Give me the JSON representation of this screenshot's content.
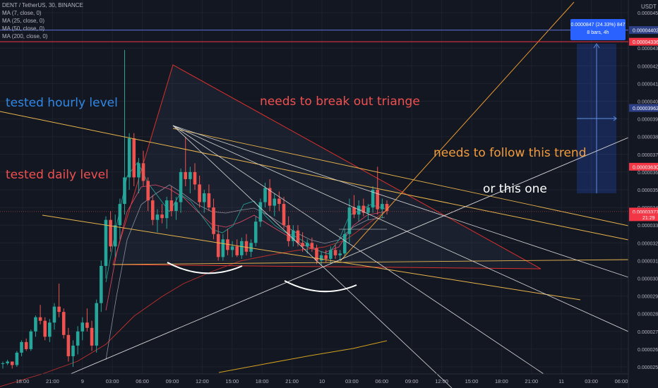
{
  "header": {
    "symbol_line": "DENT / TetherUS, 30, BINANCE",
    "ma_lines": [
      "MA (7, close, 0)",
      "MA (25, close, 0)",
      "MA (50, close, 0)",
      "MA (200, close, 0)"
    ]
  },
  "annotations": {
    "hourly": "tested hourly level",
    "daily": "tested daily level",
    "triangle": "needs to break out triange",
    "trend": "needs to follow this trend",
    "or_this": "or this one"
  },
  "measure": {
    "line1": "0.0000847 (24.33%) 847",
    "line2": "8 bars, 4h"
  },
  "colors": {
    "background": "#131722",
    "up": "#26a69a",
    "down": "#ef5350",
    "hourly_text": "#2f88e8",
    "daily_text": "#f05050",
    "trend_text": "#f39c3c",
    "white_text": "#ffffff",
    "axis_text": "#b2b5be",
    "red_level": "#f23645",
    "blue_level": "#5b6fd6"
  },
  "chart_data": {
    "type": "candlestick",
    "currency": "USDT",
    "ylim": [
      2.45e-05,
      4.5e-05
    ],
    "y_ticks": [
      "0.00004500",
      "0.00004400",
      "0.00004300",
      "0.00004200",
      "0.00004100",
      "0.00004000",
      "0.00003900",
      "0.00003800",
      "0.00003700",
      "0.00003600",
      "0.00003500",
      "0.00003400",
      "0.00003300",
      "0.00003200",
      "0.00003100",
      "0.00003000",
      "0.00002900",
      "0.00002800",
      "0.00002700",
      "0.00002600",
      "0.00002500"
    ],
    "x_ticks": [
      "18:00",
      "21:00",
      "9",
      "03:00",
      "06:00",
      "09:00",
      "12:00",
      "15:00",
      "18:00",
      "21:00",
      "10",
      "03:00",
      "06:00",
      "09:00",
      "12:00",
      "15:00",
      "18:00",
      "21:00",
      "11",
      "03:00",
      "06:00"
    ],
    "price_labels": [
      {
        "text": "0.00004500",
        "value": 4.5e-05,
        "style": "plain"
      },
      {
        "text": "0.00004402",
        "value": 4.402e-05,
        "style": "blue"
      },
      {
        "text": "0.00004336",
        "value": 4.336e-05,
        "style": "red"
      },
      {
        "text": "0.00003962",
        "value": 3.962e-05,
        "style": "blue"
      },
      {
        "text": "0.00003630",
        "value": 3.63e-05,
        "style": "red"
      },
      {
        "text": "0.00003377",
        "value": 3.377e-05,
        "style": "red"
      },
      {
        "text": "21:29",
        "value": 3.345e-05,
        "style": "red"
      }
    ],
    "horizontal_levels": [
      {
        "value": 4.336e-05,
        "color": "#f23645"
      },
      {
        "value": 4.402e-05,
        "color": "#5b6fd6"
      }
    ],
    "candles": [
      [
        2.52e-05,
        2.53e-05,
        2.49e-05,
        2.52e-05
      ],
      [
        2.52e-05,
        2.54e-05,
        2.51e-05,
        2.53e-05
      ],
      [
        2.53e-05,
        2.53e-05,
        2.49e-05,
        2.51e-05
      ],
      [
        2.51e-05,
        2.59e-05,
        2.5e-05,
        2.58e-05
      ],
      [
        2.58e-05,
        2.65e-05,
        2.56e-05,
        2.64e-05
      ],
      [
        2.64e-05,
        2.66e-05,
        2.59e-05,
        2.6e-05
      ],
      [
        2.6e-05,
        2.71e-05,
        2.59e-05,
        2.7e-05
      ],
      [
        2.7e-05,
        2.79e-05,
        2.67e-05,
        2.78e-05
      ],
      [
        2.78e-05,
        2.85e-05,
        2.74e-05,
        2.76e-05
      ],
      [
        2.76e-05,
        2.78e-05,
        2.65e-05,
        2.67e-05
      ],
      [
        2.67e-05,
        2.77e-05,
        2.64e-05,
        2.75e-05
      ],
      [
        2.75e-05,
        2.86e-05,
        2.71e-05,
        2.84e-05
      ],
      [
        2.84e-05,
        2.97e-05,
        2.78e-05,
        2.81e-05
      ],
      [
        2.81e-05,
        2.83e-05,
        2.66e-05,
        2.68e-05
      ],
      [
        2.68e-05,
        2.72e-05,
        2.53e-05,
        2.56e-05
      ],
      [
        2.56e-05,
        2.65e-05,
        2.5e-05,
        2.62e-05
      ],
      [
        2.62e-05,
        2.73e-05,
        2.57e-05,
        2.7e-05
      ],
      [
        2.7e-05,
        2.78e-05,
        2.65e-05,
        2.75e-05
      ],
      [
        2.75e-05,
        2.83e-05,
        2.7e-05,
        2.72e-05
      ],
      [
        2.72e-05,
        2.76e-05,
        2.59e-05,
        2.62e-05
      ],
      [
        2.62e-05,
        2.88e-05,
        2.58e-05,
        2.86e-05
      ],
      [
        2.86e-05,
        3.1e-05,
        2.81e-05,
        3.07e-05
      ],
      [
        3.07e-05,
        3.35e-05,
        3e-05,
        3.33e-05
      ],
      [
        3.33e-05,
        3.38e-05,
        3.15e-05,
        3.18e-05
      ],
      [
        3.18e-05,
        3.36e-05,
        3.12e-05,
        3.3e-05
      ],
      [
        3.3e-05,
        3.45e-05,
        3.22e-05,
        3.42e-05
      ],
      [
        3.42e-05,
        4.29e-05,
        3.36e-05,
        3.57e-05
      ],
      [
        3.57e-05,
        3.82e-05,
        3.5e-05,
        3.79e-05
      ],
      [
        3.79e-05,
        3.82e-05,
        3.52e-05,
        3.57e-05
      ],
      [
        3.57e-05,
        3.68e-05,
        3.48e-05,
        3.65e-05
      ],
      [
        3.65e-05,
        3.72e-05,
        3.52e-05,
        3.55e-05
      ],
      [
        3.55e-05,
        3.57e-05,
        3.38e-05,
        3.44e-05
      ],
      [
        3.44e-05,
        3.47e-05,
        3.3e-05,
        3.33e-05
      ],
      [
        3.33e-05,
        3.39e-05,
        3.26e-05,
        3.36e-05
      ],
      [
        3.36e-05,
        3.42e-05,
        3.31e-05,
        3.34e-05
      ],
      [
        3.34e-05,
        3.46e-05,
        3.28e-05,
        3.44e-05
      ],
      [
        3.44e-05,
        3.52e-05,
        3.35e-05,
        3.38e-05
      ],
      [
        3.38e-05,
        3.46e-05,
        3.33e-05,
        3.43e-05
      ],
      [
        3.43e-05,
        3.62e-05,
        3.37e-05,
        3.6e-05
      ],
      [
        3.6e-05,
        3.8e-05,
        3.52e-05,
        3.56e-05
      ],
      [
        3.56e-05,
        3.63e-05,
        3.48e-05,
        3.6e-05
      ],
      [
        3.6e-05,
        3.65e-05,
        3.5e-05,
        3.53e-05
      ],
      [
        3.53e-05,
        3.58e-05,
        3.4e-05,
        3.43e-05
      ],
      [
        3.43e-05,
        3.5e-05,
        3.37e-05,
        3.48e-05
      ],
      [
        3.48e-05,
        3.53e-05,
        3.38e-05,
        3.4e-05
      ],
      [
        3.4e-05,
        3.45e-05,
        3.22e-05,
        3.25e-05
      ],
      [
        3.25e-05,
        3.3e-05,
        3.1e-05,
        3.12e-05
      ],
      [
        3.12e-05,
        3.25e-05,
        3.1e-05,
        3.22e-05
      ],
      [
        3.22e-05,
        3.28e-05,
        3.13e-05,
        3.16e-05
      ],
      [
        3.16e-05,
        3.21e-05,
        3.12e-05,
        3.18e-05
      ],
      [
        3.18e-05,
        3.22e-05,
        3.12e-05,
        3.13e-05
      ],
      [
        3.13e-05,
        3.23e-05,
        3.11e-05,
        3.21e-05
      ],
      [
        3.21e-05,
        3.25e-05,
        3.13e-05,
        3.15e-05
      ],
      [
        3.15e-05,
        3.22e-05,
        3.12e-05,
        3.2e-05
      ],
      [
        3.2e-05,
        3.35e-05,
        3.18e-05,
        3.32e-05
      ],
      [
        3.32e-05,
        3.45e-05,
        3.29e-05,
        3.43e-05
      ],
      [
        3.43e-05,
        3.54e-05,
        3.4e-05,
        3.51e-05
      ],
      [
        3.51e-05,
        3.56e-05,
        3.38e-05,
        3.41e-05
      ],
      [
        3.41e-05,
        3.48e-05,
        3.35e-05,
        3.45e-05
      ],
      [
        3.45e-05,
        3.49e-05,
        3.38e-05,
        3.42e-05
      ],
      [
        3.42e-05,
        3.46e-05,
        3.28e-05,
        3.3e-05
      ],
      [
        3.3e-05,
        3.35e-05,
        3.18e-05,
        3.21e-05
      ],
      [
        3.21e-05,
        3.3e-05,
        3.18e-05,
        3.27e-05
      ],
      [
        3.27e-05,
        3.3e-05,
        3.18e-05,
        3.2e-05
      ],
      [
        3.2e-05,
        3.26e-05,
        3.15e-05,
        3.18e-05
      ],
      [
        3.18e-05,
        3.22e-05,
        3.14e-05,
        3.2e-05
      ],
      [
        3.2e-05,
        3.23e-05,
        3.15e-05,
        3.17e-05
      ],
      [
        3.17e-05,
        3.19e-05,
        3.08e-05,
        3.1e-05
      ],
      [
        3.1e-05,
        3.15e-05,
        3.07e-05,
        3.13e-05
      ],
      [
        3.13e-05,
        3.16e-05,
        3.09e-05,
        3.11e-05
      ],
      [
        3.11e-05,
        3.18e-05,
        3.08e-05,
        3.16e-05
      ],
      [
        3.16e-05,
        3.19e-05,
        3.11e-05,
        3.13e-05
      ],
      [
        3.13e-05,
        3.16e-05,
        3.1e-05,
        3.14e-05
      ],
      [
        3.14e-05,
        3.28e-05,
        3.12e-05,
        3.25e-05
      ],
      [
        3.25e-05,
        3.45e-05,
        3.2e-05,
        3.4e-05
      ],
      [
        3.4e-05,
        3.47e-05,
        3.34e-05,
        3.36e-05
      ],
      [
        3.36e-05,
        3.44e-05,
        3.32e-05,
        3.41e-05
      ],
      [
        3.41e-05,
        3.45e-05,
        3.35e-05,
        3.37e-05
      ],
      [
        3.37e-05,
        3.42e-05,
        3.33e-05,
        3.4e-05
      ],
      [
        3.4e-05,
        3.52e-05,
        3.37e-05,
        3.5e-05
      ],
      [
        3.5e-05,
        3.63e-05,
        3.36e-05,
        3.39e-05
      ],
      [
        3.39e-05,
        3.45e-05,
        3.34e-05,
        3.42e-05
      ],
      [
        3.42e-05,
        3.44e-05,
        3.36e-05,
        3.38e-05
      ]
    ]
  }
}
